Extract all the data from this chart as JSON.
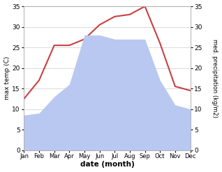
{
  "months": [
    "Jan",
    "Feb",
    "Mar",
    "Apr",
    "May",
    "Jun",
    "Jul",
    "Aug",
    "Sep",
    "Oct",
    "Nov",
    "Dec"
  ],
  "max_temp": [
    12.5,
    17.0,
    25.5,
    25.5,
    27.0,
    30.5,
    32.5,
    33.0,
    35.0,
    26.0,
    15.5,
    14.5
  ],
  "precipitation": [
    8.5,
    9.0,
    13.0,
    16.0,
    28.0,
    28.0,
    27.0,
    27.0,
    27.0,
    17.0,
    11.0,
    10.0
  ],
  "temp_color": "#c84040",
  "precip_color": "#b8c8f0",
  "ylim_left": [
    0,
    35
  ],
  "ylim_right": [
    0,
    35
  ],
  "yticks": [
    0,
    5,
    10,
    15,
    20,
    25,
    30,
    35
  ],
  "xlabel": "date (month)",
  "ylabel_left": "max temp (C)",
  "ylabel_right": "med. precipitation (kg/m2)",
  "background_color": "#ffffff",
  "grid_color": "#cccccc"
}
